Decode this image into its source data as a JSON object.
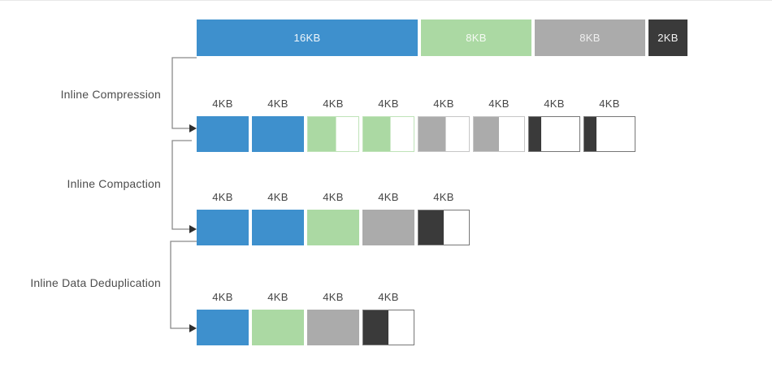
{
  "palette": {
    "blue": {
      "fill": "#3E90CD",
      "border": "#8FBFE2"
    },
    "green": {
      "fill": "#ABD9A3",
      "border": "#BFE3B8"
    },
    "gray": {
      "fill": "#ABABAB",
      "border": "#C6C6C6"
    },
    "dark": {
      "fill": "#3A3A3A",
      "border": "#777777"
    }
  },
  "line_color": "#8a8a8a",
  "arrow_color": "#2f2f2f",
  "top_bar": {
    "segments": [
      {
        "label": "16KB",
        "color": "blue",
        "kb": 16,
        "text_color": "#EFF6FB"
      },
      {
        "label": "8KB",
        "color": "green",
        "kb": 8,
        "text_color": "#F6FBF4"
      },
      {
        "label": "8KB",
        "color": "gray",
        "kb": 8,
        "text_color": "#EFEFEF"
      },
      {
        "label": "2KB",
        "color": "dark",
        "kb": 2,
        "text_color": "#F2F2F2"
      }
    ]
  },
  "stages": [
    {
      "label": "Inline Compression",
      "blocks": [
        {
          "label": "4KB",
          "color": "blue",
          "fill": 1
        },
        {
          "label": "4KB",
          "color": "blue",
          "fill": 1
        },
        {
          "label": "4KB",
          "color": "green",
          "fill": 0.56
        },
        {
          "label": "4KB",
          "color": "green",
          "fill": 0.54
        },
        {
          "label": "4KB",
          "color": "gray",
          "fill": 0.54
        },
        {
          "label": "4KB",
          "color": "gray",
          "fill": 0.5
        },
        {
          "label": "4KB",
          "color": "dark",
          "fill": 0.24
        },
        {
          "label": "4KB",
          "color": "dark",
          "fill": 0.24
        }
      ]
    },
    {
      "label": "Inline Compaction",
      "blocks": [
        {
          "label": "4KB",
          "color": "blue",
          "fill": 1
        },
        {
          "label": "4KB",
          "color": "blue",
          "fill": 1
        },
        {
          "label": "4KB",
          "color": "green",
          "fill": 1
        },
        {
          "label": "4KB",
          "color": "gray",
          "fill": 1
        },
        {
          "label": "4KB",
          "color": "dark",
          "fill": 0.5
        }
      ]
    },
    {
      "label": "Inline Data Deduplication",
      "blocks": [
        {
          "label": "4KB",
          "color": "blue",
          "fill": 1
        },
        {
          "label": "4KB",
          "color": "green",
          "fill": 1
        },
        {
          "label": "4KB",
          "color": "gray",
          "fill": 1
        },
        {
          "label": "4KB",
          "color": "dark",
          "fill": 0.5
        }
      ]
    }
  ]
}
